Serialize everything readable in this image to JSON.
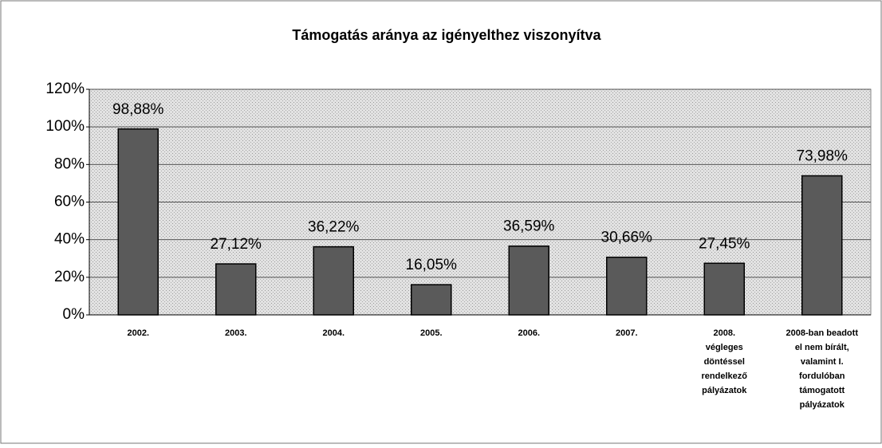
{
  "chart_data": {
    "type": "bar",
    "title": "Támogatás aránya az igényelthez viszonyítva",
    "categories": [
      "2002.",
      "2003.",
      "2004.",
      "2005.",
      "2006.",
      "2007.",
      "2008.\nvégleges\ndöntéssel\nrendelkező\npályázatok",
      "2008-ban beadott\nel nem bírált,\nvalamint I.\nfordulóban\ntámogatott\npályázatok"
    ],
    "values": [
      98.88,
      27.12,
      36.22,
      16.05,
      36.59,
      30.66,
      27.45,
      73.98
    ],
    "value_labels": [
      "98,88%",
      "27,12%",
      "36,22%",
      "16,05%",
      "36,59%",
      "30,66%",
      "27,45%",
      "73,98%"
    ],
    "color": "#5a5a5a",
    "ylim": [
      0,
      120
    ],
    "yticks": [
      {
        "value": 0,
        "label": "0%"
      },
      {
        "value": 20,
        "label": "20%"
      },
      {
        "value": 40,
        "label": "40%"
      },
      {
        "value": 60,
        "label": "60%"
      },
      {
        "value": 80,
        "label": "80%"
      },
      {
        "value": 100,
        "label": "100%"
      },
      {
        "value": 120,
        "label": "120%"
      }
    ],
    "grid": true
  }
}
